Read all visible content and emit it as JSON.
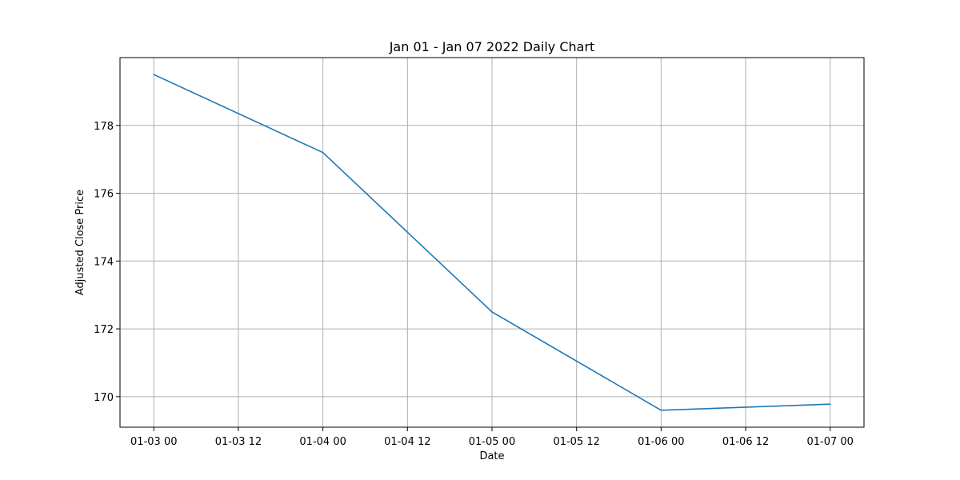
{
  "chart_data": {
    "type": "line",
    "title": "Jan 01 - Jan 07 2022 Daily Chart",
    "xlabel": "Date",
    "ylabel": "Adjusted Close Price",
    "x": [
      "2022-01-03T00:00",
      "2022-01-04T00:00",
      "2022-01-05T00:00",
      "2022-01-06T00:00",
      "2022-01-07T00:00"
    ],
    "series": [
      {
        "values": [
          179.5,
          177.2,
          172.5,
          169.6,
          169.78
        ],
        "color": "#1f77b4"
      }
    ],
    "xticks": [
      "2022-01-03T00:00",
      "2022-01-03T12:00",
      "2022-01-04T00:00",
      "2022-01-04T12:00",
      "2022-01-05T00:00",
      "2022-01-05T12:00",
      "2022-01-06T00:00",
      "2022-01-06T12:00",
      "2022-01-07T00:00"
    ],
    "xtick_labels": [
      "01-03 00",
      "01-03 12",
      "01-04 00",
      "01-04 12",
      "01-05 00",
      "01-05 12",
      "01-06 00",
      "01-06 12",
      "01-07 00"
    ],
    "yticks": [
      170,
      172,
      174,
      176,
      178
    ],
    "ytick_labels": [
      "170",
      "172",
      "174",
      "176",
      "178"
    ],
    "xlim": [
      "2022-01-02T19:12",
      "2022-01-07T04:48"
    ],
    "ylim": [
      169.1,
      180.0
    ],
    "grid": true,
    "grid_color": "#b0b0b0"
  }
}
